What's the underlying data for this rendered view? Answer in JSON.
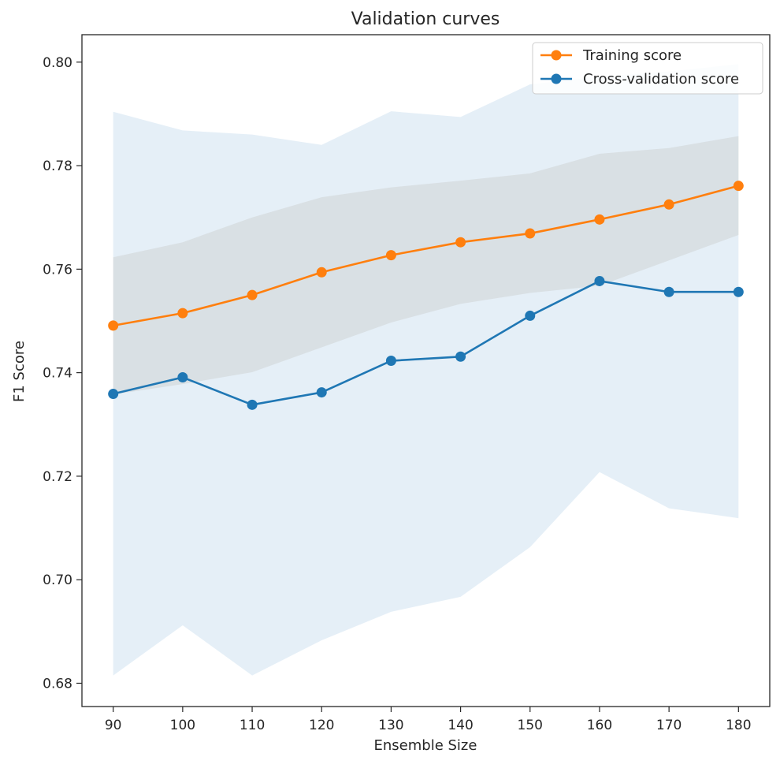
{
  "chart_data": {
    "type": "line",
    "title": "Validation curves",
    "xlabel": "Ensemble Size",
    "ylabel": "F1 Score",
    "x": [
      90,
      100,
      110,
      120,
      130,
      140,
      150,
      160,
      170,
      180
    ],
    "xlim": [
      85.5,
      184.5
    ],
    "ylim": [
      0.6755,
      0.8053
    ],
    "xticks": [
      90,
      100,
      110,
      120,
      130,
      140,
      150,
      160,
      170,
      180
    ],
    "yticks": [
      "0.68",
      "0.70",
      "0.72",
      "0.74",
      "0.76",
      "0.78",
      "0.80"
    ],
    "legend_position": "upper right",
    "grid": false,
    "series": [
      {
        "name": "Training score",
        "color": "#ff7f0e",
        "band_color": "#d9ccc0",
        "values": [
          0.7491,
          0.7515,
          0.755,
          0.7594,
          0.7627,
          0.7652,
          0.7669,
          0.7696,
          0.7725,
          0.7761
        ],
        "upper": [
          0.7623,
          0.7652,
          0.77,
          0.7739,
          0.7758,
          0.7771,
          0.7785,
          0.7823,
          0.7834,
          0.7857
        ],
        "lower": [
          0.7358,
          0.7378,
          0.7401,
          0.7449,
          0.7497,
          0.7533,
          0.7554,
          0.7568,
          0.7617,
          0.7666
        ]
      },
      {
        "name": "Cross-validation score",
        "color": "#1f77b4",
        "band_color": "#c5dcee",
        "values": [
          0.7359,
          0.7391,
          0.7338,
          0.7362,
          0.7423,
          0.7431,
          0.751,
          0.7577,
          0.7556,
          0.7556
        ],
        "upper": [
          0.7904,
          0.7868,
          0.786,
          0.784,
          0.7905,
          0.7894,
          0.7957,
          0.7972,
          0.7982,
          0.7996
        ],
        "lower": [
          0.6815,
          0.6912,
          0.6815,
          0.6883,
          0.6938,
          0.6967,
          0.7063,
          0.7208,
          0.7138,
          0.7119
        ]
      }
    ]
  }
}
